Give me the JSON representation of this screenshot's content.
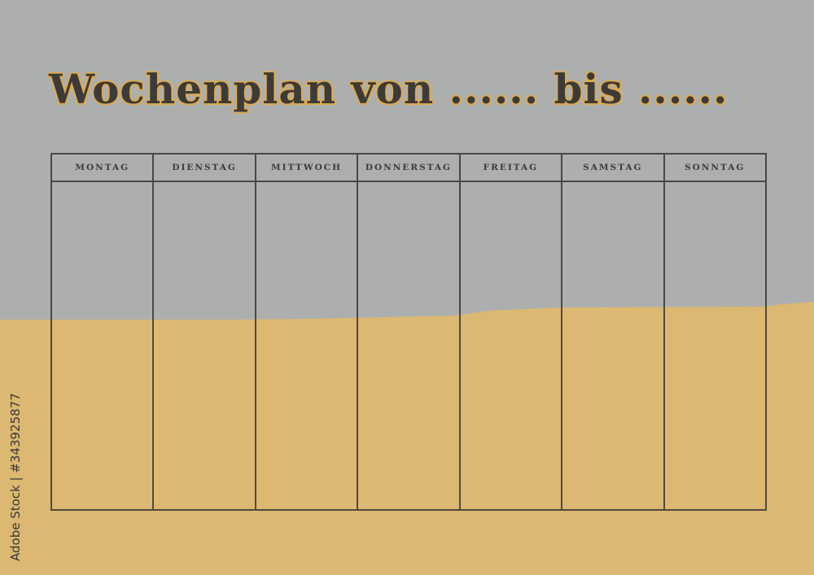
{
  "title": "Wochenplan von ...... bis ......",
  "days": [
    "MONTAG",
    "DIENSTAG",
    "MITTWOCH",
    "DONNERSTAG",
    "FREITAG",
    "SAMSTAG",
    "SONNTAG"
  ],
  "stock_id": "Adobe Stock | #343925877",
  "watermark": "Adobe Stock",
  "colors": {
    "background": "#adafae",
    "ochre": "#dcb872",
    "ink": "#3d3b39",
    "title_outline": "#e0aa4a"
  }
}
